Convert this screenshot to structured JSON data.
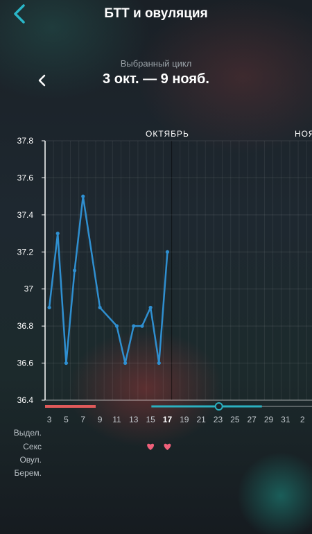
{
  "header": {
    "title": "БТТ и овуляция",
    "back_icon": "chevron-left-icon"
  },
  "cycle": {
    "caption": "Выбранный цикл",
    "range": "3 окт. — 9 нояб.",
    "prev_icon": "chevron-left-icon"
  },
  "chart_data": {
    "type": "line",
    "x": [
      3,
      4,
      5,
      6,
      7,
      9,
      11,
      12,
      13,
      14,
      15,
      16,
      17
    ],
    "y": [
      36.9,
      37.3,
      36.6,
      37.1,
      37.5,
      36.9,
      36.8,
      36.6,
      36.8,
      36.8,
      36.9,
      36.6,
      37.2
    ],
    "ylim": [
      36.4,
      37.8
    ],
    "yticks": [
      "37.8",
      "37.6",
      "37.4",
      "37.2",
      "37",
      "36.8",
      "36.6",
      "36.4"
    ],
    "xticks": [
      "3",
      "5",
      "7",
      "9",
      "11",
      "13",
      "15",
      "17",
      "19",
      "21",
      "23",
      "25",
      "27",
      "29",
      "31",
      "2"
    ],
    "xtick_bold": "17",
    "month_labels": [
      "ОКТЯБРЬ",
      "НОЯ"
    ],
    "grid": true,
    "line_color": "#2f8fd0",
    "period_color": "#e05a5a",
    "fertile_color": "#2bb0c0",
    "today_marker": "23"
  },
  "legend_rows": {
    "discharge": "Выдел.",
    "sex": "Секс",
    "ovulation": "Овул.",
    "pregnancy": "Берем."
  },
  "sex_marks": {
    "days": [
      15,
      17
    ],
    "icon": "heart-icon",
    "color": "#f0607a"
  }
}
